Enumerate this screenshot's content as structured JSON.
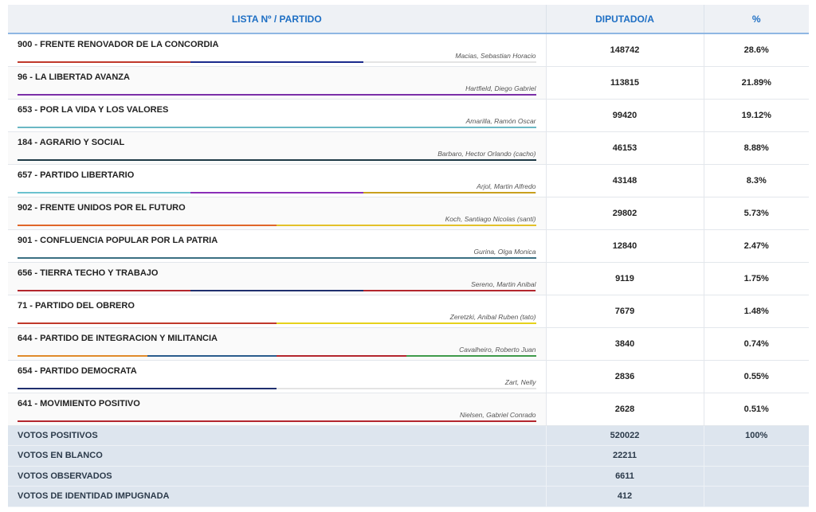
{
  "header": {
    "col_party": "LISTA Nº / PARTIDO",
    "col_votes": "DIPUTADO/A",
    "col_pct": "%"
  },
  "rows": [
    {
      "party": "900 - FRENTE RENOVADOR DE LA CONCORDIA",
      "candidate": "Macias, Sebastian Horacio",
      "votes": "148742",
      "pct": "28.6%",
      "bar": [
        "#c0392b",
        "#1a2a8c",
        "#ffffff"
      ]
    },
    {
      "party": "96 - LA LIBERTAD AVANZA",
      "candidate": "Hartfield, Diego Gabriel",
      "votes": "113815",
      "pct": "21.89%",
      "bar": [
        "#7b2fa8"
      ]
    },
    {
      "party": "653 - POR LA VIDA Y LOS VALORES",
      "candidate": "Amarilla, Ramón Oscar",
      "votes": "99420",
      "pct": "19.12%",
      "bar": [
        "#6bb8c4"
      ]
    },
    {
      "party": "184 - AGRARIO Y SOCIAL",
      "candidate": "Barbaro, Hector Orlando (cacho)",
      "votes": "46153",
      "pct": "8.88%",
      "bar": [
        "#1e3a46"
      ]
    },
    {
      "party": "657 - PARTIDO LIBERTARIO",
      "candidate": "Arjol, Martin Alfredo",
      "votes": "43148",
      "pct": "8.3%",
      "bar": [
        "#6bc2cf",
        "#8a2fb8",
        "#c9a01e"
      ]
    },
    {
      "party": "902 - FRENTE UNIDOS POR EL FUTURO",
      "candidate": "Koch, Santiago Nicolas (santi)",
      "votes": "29802",
      "pct": "5.73%",
      "bar": [
        "#e0662a",
        "#e3c12a"
      ]
    },
    {
      "party": "901 - CONFLUENCIA POPULAR POR LA PATRIA",
      "candidate": "Gurina, Olga Monica",
      "votes": "12840",
      "pct": "2.47%",
      "bar": [
        "#3a6f82"
      ]
    },
    {
      "party": "656 - TIERRA TECHO Y TRABAJO",
      "candidate": "Sereno, Martin Anibal",
      "votes": "9119",
      "pct": "1.75%",
      "bar": [
        "#b3262e",
        "#1f2f6e",
        "#b3262e"
      ]
    },
    {
      "party": "71 - PARTIDO DEL OBRERO",
      "candidate": "Zeretzki, Anibal Ruben (tato)",
      "votes": "7679",
      "pct": "1.48%",
      "bar": [
        "#c0392b",
        "#e6d21c"
      ]
    },
    {
      "party": "644 - PARTIDO DE INTEGRACION Y MILITANCIA",
      "candidate": "Cavalheiro, Roberto Juan",
      "votes": "3840",
      "pct": "0.74%",
      "bar": [
        "#e08a2a",
        "#2a5c8c",
        "#b3262e",
        "#3f9a4a"
      ]
    },
    {
      "party": "654 - PARTIDO DEMOCRATA",
      "candidate": "Zart, Nelly",
      "votes": "2836",
      "pct": "0.55%",
      "bar": [
        "#1f2f6e",
        "#ffffff"
      ]
    },
    {
      "party": "641 - MOVIMIENTO POSITIVO",
      "candidate": "Nielsen, Gabriel Conrado",
      "votes": "2628",
      "pct": "0.51%",
      "bar": [
        "#b3262e"
      ]
    }
  ],
  "totals": [
    {
      "label": "VOTOS POSITIVOS",
      "votes": "520022",
      "pct": "100%"
    },
    {
      "label": "VOTOS EN BLANCO",
      "votes": "22211",
      "pct": ""
    },
    {
      "label": "VOTOS OBSERVADOS",
      "votes": "6611",
      "pct": ""
    },
    {
      "label": "VOTOS DE IDENTIDAD IMPUGNADA",
      "votes": "412",
      "pct": ""
    }
  ]
}
